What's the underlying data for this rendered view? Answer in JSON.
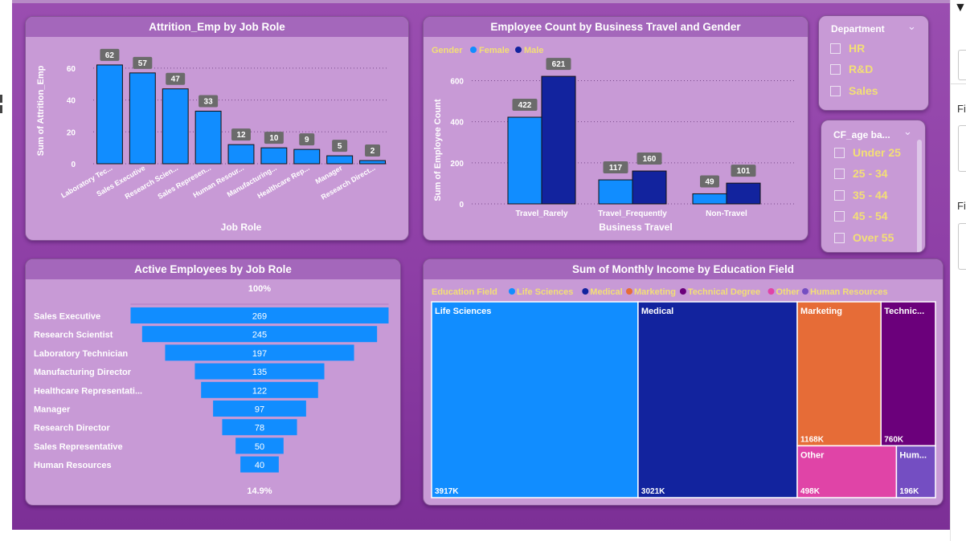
{
  "attrition_chart": {
    "title": "Attrition_Emp by Job Role",
    "xlabel": "Job Role",
    "ylabel": "Sum of Attrition_Emp",
    "bar_color": "#118dff",
    "chart_data": {
      "type": "bar",
      "title": "Attrition_Emp by Job Role",
      "xlabel": "Job Role",
      "ylabel": "Sum of Attrition_Emp",
      "categories": [
        "Laboratory Tec...",
        "Sales Executive",
        "Research Scien...",
        "Sales Represen...",
        "Human Resour...",
        "Manufacturing...",
        "Healthcare Rep...",
        "Manager",
        "Research Direct..."
      ],
      "values": [
        62,
        57,
        47,
        33,
        12,
        10,
        9,
        5,
        2
      ],
      "yticks": [
        0,
        20,
        40,
        60
      ],
      "ylim": [
        0,
        67
      ],
      "grid": true
    }
  },
  "travel_chart": {
    "title": "Employee Count by Business Travel and Gender",
    "legend_title": "Gender",
    "xlabel": "Business Travel",
    "ylabel": "Sum of Employee Count",
    "chart_data": {
      "type": "bar",
      "title": "Employee Count by Business Travel and Gender",
      "xlabel": "Business Travel",
      "ylabel": "Sum of Employee Count",
      "categories": [
        "Travel_Rarely",
        "Travel_Frequently",
        "Non-Travel"
      ],
      "series": [
        {
          "name": "Female",
          "values": [
            422,
            117,
            49
          ],
          "color": "#118dff"
        },
        {
          "name": "Male",
          "values": [
            621,
            160,
            101
          ],
          "color": "#12239e"
        }
      ],
      "yticks": [
        0,
        200,
        400,
        600
      ],
      "ylim": [
        0,
        680
      ],
      "legend": "top-left",
      "grid": true
    }
  },
  "department_slicer": {
    "title": "Department",
    "items": [
      "HR",
      "R&D",
      "Sales"
    ]
  },
  "age_slicer": {
    "title": "CF_age ba...",
    "items": [
      "Under 25",
      "25 - 34",
      "35 - 44",
      "45 - 54",
      "Over 55"
    ]
  },
  "funnel_chart": {
    "title": "Active Employees by Job Role",
    "top_label": "100%",
    "bottom_label": "14.9%",
    "bar_color": "#118dff",
    "chart_data": {
      "type": "bar",
      "subtype": "funnel",
      "title": "Active Employees by Job Role",
      "categories": [
        "Sales Executive",
        "Research Scientist",
        "Laboratory Technician",
        "Manufacturing Director",
        "Healthcare Representati...",
        "Manager",
        "Research Director",
        "Sales Representative",
        "Human Resources"
      ],
      "values": [
        269,
        245,
        197,
        135,
        122,
        97,
        78,
        50,
        40
      ],
      "top_percent": "100%",
      "bottom_percent": "14.9%"
    }
  },
  "treemap_chart": {
    "title": "Sum of Monthly Income by Education Field",
    "legend_title": "Education Field",
    "chart_data": {
      "type": "treemap",
      "title": "Sum of Monthly Income by Education Field",
      "categories": [
        "Life Sciences",
        "Medical",
        "Marketing",
        "Technical Degree",
        "Other",
        "Human Resources"
      ],
      "values": [
        3917,
        3021,
        1168,
        760,
        498,
        196
      ],
      "value_labels": [
        "3917K",
        "3021K",
        "1168K",
        "760K",
        "498K",
        "196K"
      ],
      "tile_labels": [
        "Life Sciences",
        "Medical",
        "Marketing",
        "Technic...",
        "Other",
        "Hum..."
      ],
      "colors": [
        "#118dff",
        "#12239e",
        "#e66c37",
        "#6b007b",
        "#e044a7",
        "#744ec2"
      ],
      "unit": "K"
    }
  },
  "filters_pane": {
    "label_1": "Fi",
    "label_2": "Fi"
  }
}
